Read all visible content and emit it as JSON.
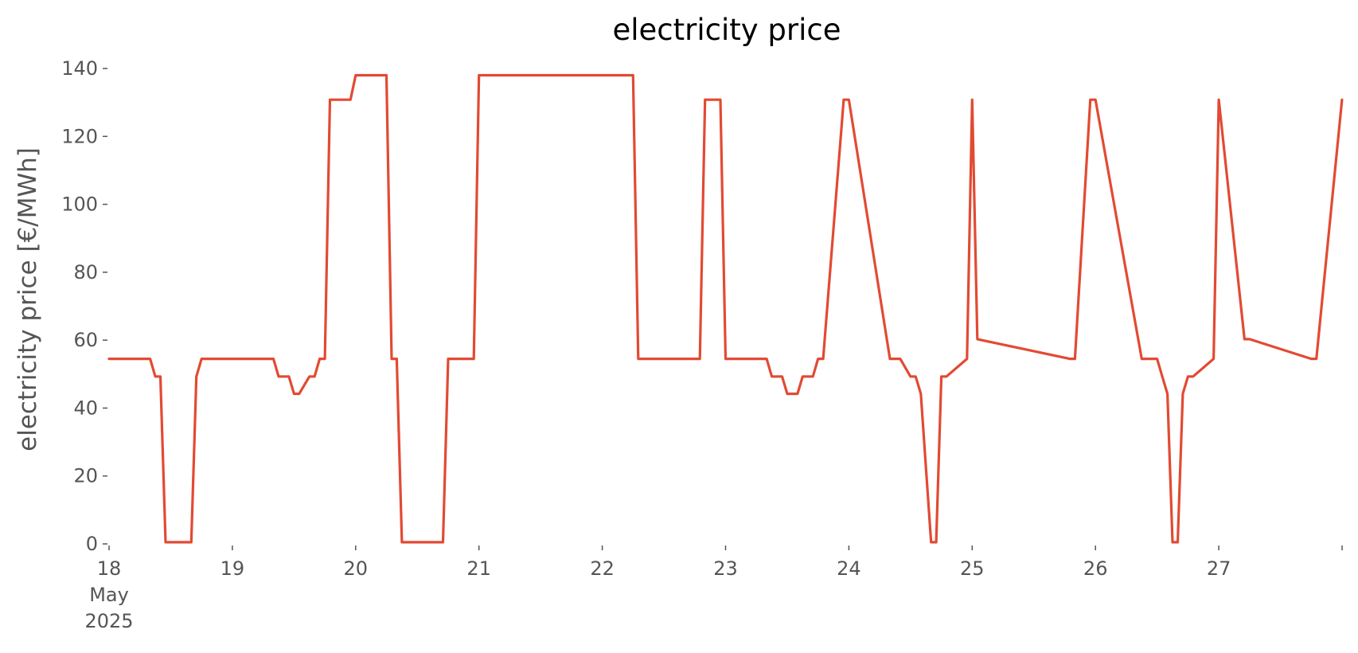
{
  "chart_data": {
    "type": "line",
    "title": "electricity price",
    "xlabel": "",
    "ylabel": "electricity price [€/MWh]",
    "ylim": [
      0,
      140
    ],
    "xlim": [
      "2025-05-18 00:00",
      "2025-05-28 00:00"
    ],
    "grid": false,
    "line_color": "#E24A33",
    "y_ticks": [
      0,
      20,
      40,
      60,
      80,
      100,
      120,
      140
    ],
    "x_ticks": [
      {
        "x": "2025-05-18 00:00",
        "lines": [
          "18",
          "May",
          "2025"
        ]
      },
      {
        "x": "2025-05-19 00:00",
        "lines": [
          "19"
        ]
      },
      {
        "x": "2025-05-20 00:00",
        "lines": [
          "20"
        ]
      },
      {
        "x": "2025-05-21 00:00",
        "lines": [
          "21"
        ]
      },
      {
        "x": "2025-05-22 00:00",
        "lines": [
          "22"
        ]
      },
      {
        "x": "2025-05-23 00:00",
        "lines": [
          "23"
        ]
      },
      {
        "x": "2025-05-24 00:00",
        "lines": [
          "24"
        ]
      },
      {
        "x": "2025-05-25 00:00",
        "lines": [
          "25"
        ]
      },
      {
        "x": "2025-05-26 00:00",
        "lines": [
          "26"
        ]
      },
      {
        "x": "2025-05-27 00:00",
        "lines": [
          "27"
        ]
      },
      {
        "x": "2025-05-28 00:00",
        "lines": [
          ""
        ]
      }
    ],
    "series": [
      {
        "x": [
          "2025-05-18 00:00",
          "2025-05-18 08:00",
          "2025-05-18 09:00",
          "2025-05-18 10:00",
          "2025-05-18 11:00",
          "2025-05-18 16:00",
          "2025-05-18 17:00",
          "2025-05-18 18:00",
          "2025-05-19 08:00",
          "2025-05-19 09:00",
          "2025-05-19 11:00",
          "2025-05-19 12:00",
          "2025-05-19 13:00",
          "2025-05-19 15:00",
          "2025-05-19 16:00",
          "2025-05-19 17:00",
          "2025-05-19 18:00",
          "2025-05-19 19:00",
          "2025-05-19 23:00",
          "2025-05-20 00:00",
          "2025-05-20 06:00",
          "2025-05-20 07:00",
          "2025-05-20 08:00",
          "2025-05-20 09:00",
          "2025-05-20 17:00",
          "2025-05-20 18:00",
          "2025-05-20 23:00",
          "2025-05-21 00:00",
          "2025-05-22 06:00",
          "2025-05-22 07:00",
          "2025-05-22 19:00",
          "2025-05-22 20:00",
          "2025-05-22 23:00",
          "2025-05-23 00:00",
          "2025-05-23 08:00",
          "2025-05-23 09:00",
          "2025-05-23 11:00",
          "2025-05-23 12:00",
          "2025-05-23 14:00",
          "2025-05-23 15:00",
          "2025-05-23 17:00",
          "2025-05-23 18:00",
          "2025-05-23 19:00",
          "2025-05-23 23:00",
          "2025-05-24 00:00",
          "2025-05-24 08:00",
          "2025-05-24 09:00",
          "2025-05-24 10:00",
          "2025-05-24 12:00",
          "2025-05-24 13:00",
          "2025-05-24 14:00",
          "2025-05-24 16:00",
          "2025-05-24 17:00",
          "2025-05-24 18:00",
          "2025-05-24 19:00",
          "2025-05-24 23:00",
          "2025-05-25 00:00",
          "2025-05-25 01:00",
          "2025-05-25 19:00",
          "2025-05-25 20:00",
          "2025-05-25 23:00",
          "2025-05-26 00:00",
          "2025-05-26 09:00",
          "2025-05-26 11:00",
          "2025-05-26 12:00",
          "2025-05-26 13:00",
          "2025-05-26 14:00",
          "2025-05-26 15:00",
          "2025-05-26 16:00",
          "2025-05-26 17:00",
          "2025-05-26 18:00",
          "2025-05-26 19:00",
          "2025-05-26 23:00",
          "2025-05-27 00:00",
          "2025-05-27 05:00",
          "2025-05-27 06:00",
          "2025-05-27 18:00",
          "2025-05-27 19:00",
          "2025-05-27 23:59"
        ],
        "values": [
          54.5,
          54.5,
          49.3,
          49.3,
          0.5,
          0.5,
          49.3,
          54.5,
          54.5,
          49.3,
          49.3,
          44.2,
          44.2,
          49.3,
          49.3,
          54.5,
          54.5,
          130.8,
          130.8,
          138,
          138,
          54.5,
          54.5,
          0.5,
          0.5,
          54.5,
          54.5,
          138,
          138,
          54.5,
          54.5,
          130.8,
          130.8,
          54.5,
          54.5,
          49.3,
          49.3,
          44.2,
          44.2,
          49.3,
          49.3,
          54.5,
          54.5,
          130.8,
          130.8,
          54.5,
          54.5,
          54.5,
          49.3,
          49.3,
          44.2,
          0.5,
          0.5,
          49.3,
          49.3,
          54.5,
          130.8,
          60.3,
          54.5,
          54.5,
          130.8,
          130.8,
          54.5,
          54.5,
          54.5,
          49.3,
          44.2,
          0.5,
          0.5,
          44.2,
          49.3,
          49.3,
          54.5,
          130.8,
          60.3,
          60.3,
          54.5,
          54.5,
          130.8
        ]
      }
    ]
  }
}
